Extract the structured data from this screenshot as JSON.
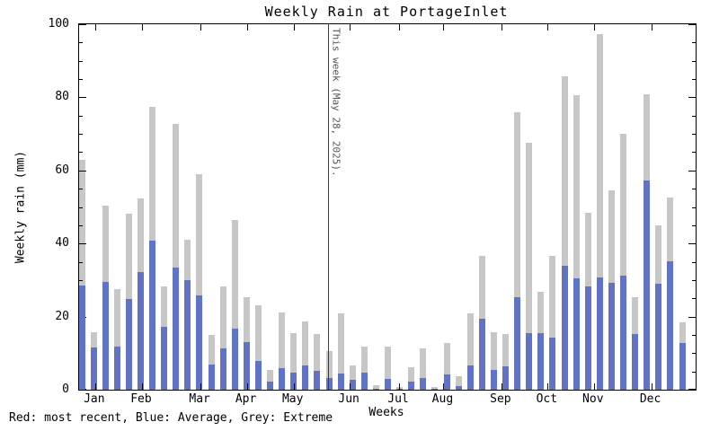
{
  "title": "Weekly Rain at PortageInlet",
  "legend_note": "Red: most recent, Blue: Average, Grey: Extreme",
  "chart_data": {
    "type": "bar",
    "title": "Weekly Rain at PortageInlet",
    "xlabel": "Weeks",
    "ylabel": "Weekly rain (mm)",
    "ylim": [
      0,
      100
    ],
    "y_major_ticks": [
      0,
      20,
      40,
      60,
      80,
      100
    ],
    "y_minor_step": 5,
    "grid": false,
    "weeks": 52,
    "months": [
      "Jan",
      "Feb",
      "Mar",
      "Apr",
      "May",
      "Jun",
      "Jul",
      "Aug",
      "Sep",
      "Oct",
      "Nov",
      "Dec"
    ],
    "month_positions": [
      0.026,
      0.102,
      0.197,
      0.272,
      0.348,
      0.439,
      0.519,
      0.591,
      0.685,
      0.76,
      0.835,
      0.928
    ],
    "series": [
      {
        "name": "Extreme",
        "color": "#c7c7c7",
        "values": [
          63,
          15.8,
          50.3,
          27.4,
          48.2,
          52.4,
          77.5,
          28.3,
          72.7,
          41.1,
          58.9,
          15.1,
          28.3,
          46.4,
          25.4,
          23.1,
          5.4,
          21.2,
          15.6,
          18.7,
          15.2,
          10.5,
          21,
          6.7,
          11.9,
          1.2,
          11.7,
          0.7,
          6.2,
          11.2,
          0.7,
          12.7,
          3.8,
          20.8,
          36.6,
          15.8,
          15.3,
          76,
          67.5,
          26.9,
          36.7,
          85.7,
          80.5,
          48.5,
          97.3,
          54.6,
          70.1,
          25.3,
          80.8,
          44.9,
          52.5,
          18.5
        ]
      },
      {
        "name": "Average",
        "color": "#6173c5",
        "values": [
          28.4,
          11.6,
          29.5,
          11.8,
          24.9,
          32.2,
          40.7,
          17.3,
          33.4,
          30.1,
          25.9,
          6.8,
          11.4,
          16.6,
          13.1,
          7.9,
          2.2,
          5.8,
          4.6,
          6.7,
          5.2,
          3.2,
          4.4,
          2.7,
          4.6,
          0.3,
          2.9,
          0.2,
          2.1,
          3.2,
          0.3,
          4.2,
          0.9,
          6.7,
          19.3,
          5.4,
          6.5,
          25.3,
          15.6,
          15.6,
          14.3,
          33.8,
          30.5,
          28.2,
          30.8,
          29.3,
          31.1,
          15.3,
          57.2,
          28.9,
          35.2,
          12.7
        ]
      }
    ],
    "annotation": {
      "text": "This week (May 28, 2025).",
      "x_fraction": 0.4045
    },
    "legend_text": "Red: most recent, Blue: Average, Grey: Extreme",
    "legend_position": "bottom-left"
  }
}
